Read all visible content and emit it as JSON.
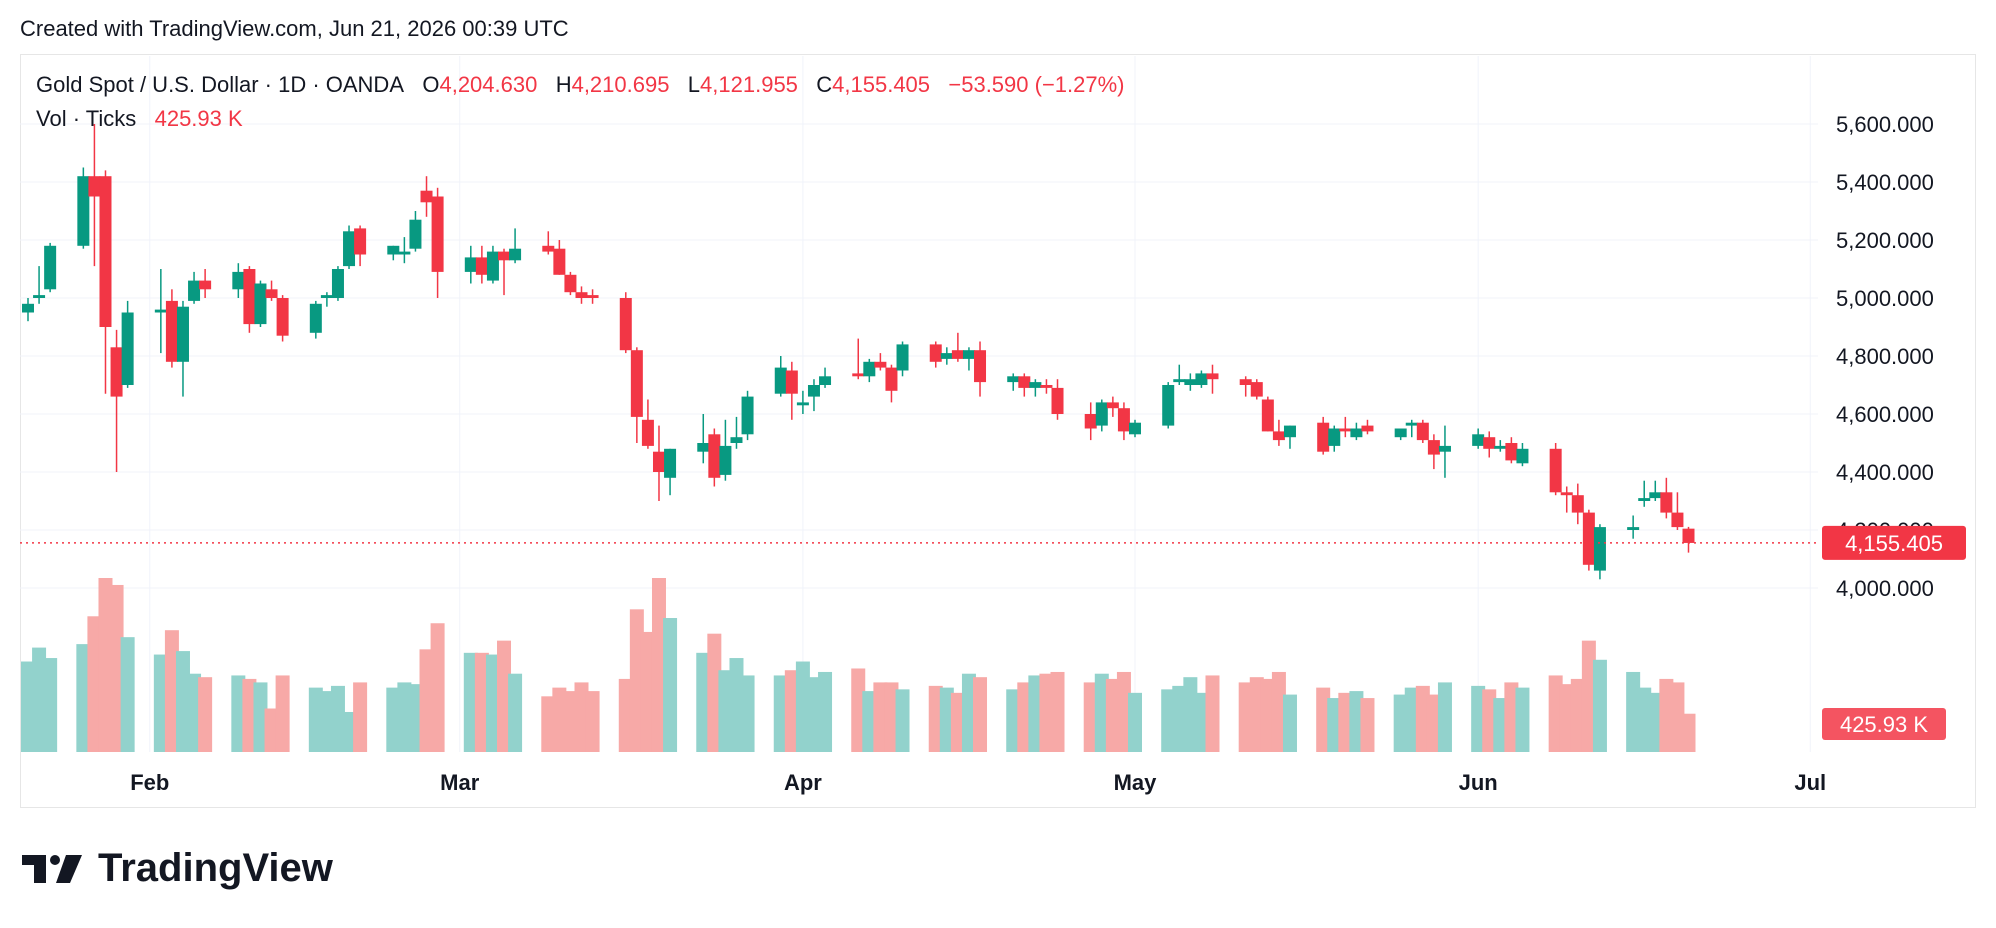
{
  "header": {
    "created_text": "Created with TradingView.com, Jun 21, 2026 00:39 UTC"
  },
  "legend": {
    "symbol": "Gold Spot / U.S. Dollar · 1D · OANDA",
    "o_label": "O",
    "o_value": "4,204.630",
    "h_label": "H",
    "h_value": "4,210.695",
    "l_label": "L",
    "l_value": "4,121.955",
    "c_label": "C",
    "c_value": "4,155.405",
    "change": "−53.590 (−1.27%)",
    "vol_label": "Vol · Ticks",
    "vol_value": "425.93 K"
  },
  "brand": {
    "name": "TradingView"
  },
  "colors": {
    "up": "#089981",
    "down": "#f23645",
    "up_vol": "#92d2cc",
    "down_vol": "#f7a9a7",
    "grid": "#f0f3fa",
    "text": "#131722"
  },
  "chart_data": {
    "type": "candlestick",
    "y_ticks": [
      "5,600.000",
      "5,400.000",
      "5,200.000",
      "5,000.000",
      "4,800.000",
      "4,600.000",
      "4,400.000",
      "4,200.000",
      "4,000.000"
    ],
    "x_ticks": [
      "Feb",
      "Mar",
      "Apr",
      "May",
      "Jun",
      "Jul"
    ],
    "last_price_label": "4,155.405",
    "last_volume_label": "425.93 K",
    "last_price": 4155.405,
    "ylim": [
      3870,
      5770
    ],
    "grid": true,
    "candles": [
      {
        "d": "01-21",
        "o": 4950,
        "h": 5000,
        "l": 4920,
        "c": 4980,
        "v": 0.52
      },
      {
        "d": "01-22",
        "o": 5000,
        "h": 5110,
        "l": 4980,
        "c": 5010,
        "v": 0.6
      },
      {
        "d": "01-23",
        "o": 5030,
        "h": 5190,
        "l": 5020,
        "c": 5180,
        "v": 0.54
      },
      {
        "d": "01-26",
        "o": 5180,
        "h": 5450,
        "l": 5170,
        "c": 5420,
        "v": 0.62
      },
      {
        "d": "01-27",
        "o": 5420,
        "h": 5600,
        "l": 5110,
        "c": 5350,
        "v": 0.78
      },
      {
        "d": "01-28",
        "o": 5420,
        "h": 5440,
        "l": 4670,
        "c": 4900,
        "v": 1.0
      },
      {
        "d": "01-29",
        "o": 4830,
        "h": 4890,
        "l": 4400,
        "c": 4660,
        "v": 0.96
      },
      {
        "d": "01-30",
        "o": 4700,
        "h": 4990,
        "l": 4690,
        "c": 4950,
        "v": 0.66
      },
      {
        "d": "02-02",
        "o": 4950,
        "h": 5100,
        "l": 4810,
        "c": 4960,
        "v": 0.56
      },
      {
        "d": "02-03",
        "o": 4990,
        "h": 5030,
        "l": 4760,
        "c": 4780,
        "v": 0.7
      },
      {
        "d": "02-04",
        "o": 4780,
        "h": 4990,
        "l": 4660,
        "c": 4970,
        "v": 0.58
      },
      {
        "d": "02-05",
        "o": 4990,
        "h": 5090,
        "l": 4980,
        "c": 5060,
        "v": 0.45
      },
      {
        "d": "02-06",
        "o": 5060,
        "h": 5100,
        "l": 5000,
        "c": 5030,
        "v": 0.43
      },
      {
        "d": "02-09",
        "o": 5030,
        "h": 5120,
        "l": 5000,
        "c": 5090,
        "v": 0.44
      },
      {
        "d": "02-10",
        "o": 5100,
        "h": 5110,
        "l": 4880,
        "c": 4910,
        "v": 0.42
      },
      {
        "d": "02-11",
        "o": 4910,
        "h": 5060,
        "l": 4900,
        "c": 5050,
        "v": 0.4
      },
      {
        "d": "02-12",
        "o": 5030,
        "h": 5060,
        "l": 4990,
        "c": 5000,
        "v": 0.25
      },
      {
        "d": "02-13",
        "o": 5000,
        "h": 5010,
        "l": 4850,
        "c": 4870,
        "v": 0.44
      },
      {
        "d": "02-16",
        "o": 4880,
        "h": 4990,
        "l": 4860,
        "c": 4980,
        "v": 0.37
      },
      {
        "d": "02-17",
        "o": 5000,
        "h": 5020,
        "l": 4970,
        "c": 5010,
        "v": 0.35
      },
      {
        "d": "02-18",
        "o": 5000,
        "h": 5110,
        "l": 4990,
        "c": 5100,
        "v": 0.38
      },
      {
        "d": "02-19",
        "o": 5110,
        "h": 5250,
        "l": 5100,
        "c": 5230,
        "v": 0.23
      },
      {
        "d": "02-20",
        "o": 5240,
        "h": 5250,
        "l": 5110,
        "c": 5150,
        "v": 0.4
      },
      {
        "d": "02-23",
        "o": 5150,
        "h": 5180,
        "l": 5130,
        "c": 5180,
        "v": 0.37
      },
      {
        "d": "02-24",
        "o": 5150,
        "h": 5210,
        "l": 5120,
        "c": 5160,
        "v": 0.4
      },
      {
        "d": "02-25",
        "o": 5170,
        "h": 5300,
        "l": 5160,
        "c": 5270,
        "v": 0.39
      },
      {
        "d": "02-26",
        "o": 5370,
        "h": 5420,
        "l": 5280,
        "c": 5330,
        "v": 0.59
      },
      {
        "d": "02-27",
        "o": 5350,
        "h": 5380,
        "l": 5000,
        "c": 5090,
        "v": 0.74
      },
      {
        "d": "03-02",
        "o": 5090,
        "h": 5180,
        "l": 5050,
        "c": 5140,
        "v": 0.57
      },
      {
        "d": "03-03",
        "o": 5140,
        "h": 5180,
        "l": 5050,
        "c": 5080,
        "v": 0.57
      },
      {
        "d": "03-04",
        "o": 5060,
        "h": 5180,
        "l": 5050,
        "c": 5160,
        "v": 0.56
      },
      {
        "d": "03-05",
        "o": 5160,
        "h": 5170,
        "l": 5010,
        "c": 5130,
        "v": 0.64
      },
      {
        "d": "03-06",
        "o": 5130,
        "h": 5240,
        "l": 5120,
        "c": 5170,
        "v": 0.45
      },
      {
        "d": "03-09",
        "o": 5180,
        "h": 5230,
        "l": 5150,
        "c": 5160,
        "v": 0.32
      },
      {
        "d": "03-10",
        "o": 5170,
        "h": 5200,
        "l": 5080,
        "c": 5080,
        "v": 0.37
      },
      {
        "d": "03-11",
        "o": 5080,
        "h": 5090,
        "l": 5010,
        "c": 5020,
        "v": 0.35
      },
      {
        "d": "03-12",
        "o": 5020,
        "h": 5040,
        "l": 4980,
        "c": 5000,
        "v": 0.4
      },
      {
        "d": "03-13",
        "o": 5010,
        "h": 5030,
        "l": 4980,
        "c": 5000,
        "v": 0.35
      },
      {
        "d": "03-16",
        "o": 5000,
        "h": 5020,
        "l": 4810,
        "c": 4820,
        "v": 0.42
      },
      {
        "d": "03-17",
        "o": 4820,
        "h": 4830,
        "l": 4500,
        "c": 4590,
        "v": 0.82
      },
      {
        "d": "03-18",
        "o": 4580,
        "h": 4650,
        "l": 4480,
        "c": 4490,
        "v": 0.69
      },
      {
        "d": "03-19",
        "o": 4470,
        "h": 4560,
        "l": 4300,
        "c": 4400,
        "v": 1.0
      },
      {
        "d": "03-20",
        "o": 4380,
        "h": 4480,
        "l": 4320,
        "c": 4480,
        "v": 0.77
      },
      {
        "d": "03-23",
        "o": 4470,
        "h": 4600,
        "l": 4430,
        "c": 4500,
        "v": 0.57
      },
      {
        "d": "03-24",
        "o": 4530,
        "h": 4550,
        "l": 4350,
        "c": 4380,
        "v": 0.68
      },
      {
        "d": "03-25",
        "o": 4390,
        "h": 4580,
        "l": 4370,
        "c": 4490,
        "v": 0.47
      },
      {
        "d": "03-26",
        "o": 4500,
        "h": 4590,
        "l": 4480,
        "c": 4520,
        "v": 0.54
      },
      {
        "d": "03-27",
        "o": 4530,
        "h": 4680,
        "l": 4510,
        "c": 4660,
        "v": 0.44
      },
      {
        "d": "03-30",
        "o": 4670,
        "h": 4800,
        "l": 4660,
        "c": 4760,
        "v": 0.44
      },
      {
        "d": "03-31",
        "o": 4750,
        "h": 4780,
        "l": 4580,
        "c": 4670,
        "v": 0.47
      },
      {
        "d": "04-01",
        "o": 4630,
        "h": 4680,
        "l": 4600,
        "c": 4640,
        "v": 0.52
      },
      {
        "d": "04-02",
        "o": 4660,
        "h": 4720,
        "l": 4610,
        "c": 4700,
        "v": 0.43
      },
      {
        "d": "04-03",
        "o": 4700,
        "h": 4760,
        "l": 4690,
        "c": 4730,
        "v": 0.46
      },
      {
        "d": "04-06",
        "o": 4740,
        "h": 4860,
        "l": 4720,
        "c": 4730,
        "v": 0.48
      },
      {
        "d": "04-07",
        "o": 4730,
        "h": 4790,
        "l": 4710,
        "c": 4780,
        "v": 0.35
      },
      {
        "d": "04-08",
        "o": 4780,
        "h": 4810,
        "l": 4750,
        "c": 4760,
        "v": 0.4
      },
      {
        "d": "04-09",
        "o": 4760,
        "h": 4770,
        "l": 4640,
        "c": 4680,
        "v": 0.4
      },
      {
        "d": "04-10",
        "o": 4750,
        "h": 4850,
        "l": 4730,
        "c": 4840,
        "v": 0.36
      },
      {
        "d": "04-13",
        "o": 4840,
        "h": 4850,
        "l": 4760,
        "c": 4780,
        "v": 0.38
      },
      {
        "d": "04-14",
        "o": 4790,
        "h": 4830,
        "l": 4770,
        "c": 4810,
        "v": 0.37
      },
      {
        "d": "04-15",
        "o": 4820,
        "h": 4880,
        "l": 4780,
        "c": 4790,
        "v": 0.34
      },
      {
        "d": "04-16",
        "o": 4790,
        "h": 4830,
        "l": 4750,
        "c": 4820,
        "v": 0.45
      },
      {
        "d": "04-17",
        "o": 4820,
        "h": 4850,
        "l": 4660,
        "c": 4710,
        "v": 0.43
      },
      {
        "d": "04-20",
        "o": 4710,
        "h": 4740,
        "l": 4680,
        "c": 4730,
        "v": 0.36
      },
      {
        "d": "04-21",
        "o": 4730,
        "h": 4740,
        "l": 4660,
        "c": 4690,
        "v": 0.4
      },
      {
        "d": "04-22",
        "o": 4690,
        "h": 4720,
        "l": 4660,
        "c": 4710,
        "v": 0.44
      },
      {
        "d": "04-23",
        "o": 4700,
        "h": 4720,
        "l": 4670,
        "c": 4690,
        "v": 0.45
      },
      {
        "d": "04-24",
        "o": 4690,
        "h": 4720,
        "l": 4580,
        "c": 4600,
        "v": 0.46
      },
      {
        "d": "04-27",
        "o": 4600,
        "h": 4640,
        "l": 4510,
        "c": 4550,
        "v": 0.4
      },
      {
        "d": "04-28",
        "o": 4560,
        "h": 4650,
        "l": 4540,
        "c": 4640,
        "v": 0.45
      },
      {
        "d": "04-29",
        "o": 4640,
        "h": 4660,
        "l": 4590,
        "c": 4620,
        "v": 0.42
      },
      {
        "d": "04-30",
        "o": 4620,
        "h": 4640,
        "l": 4510,
        "c": 4540,
        "v": 0.46
      },
      {
        "d": "05-01",
        "o": 4530,
        "h": 4580,
        "l": 4520,
        "c": 4570,
        "v": 0.34
      },
      {
        "d": "05-04",
        "o": 4560,
        "h": 4710,
        "l": 4550,
        "c": 4700,
        "v": 0.36
      },
      {
        "d": "05-05",
        "o": 4710,
        "h": 4770,
        "l": 4700,
        "c": 4720,
        "v": 0.38
      },
      {
        "d": "05-06",
        "o": 4700,
        "h": 4740,
        "l": 4680,
        "c": 4720,
        "v": 0.43
      },
      {
        "d": "05-07",
        "o": 4700,
        "h": 4750,
        "l": 4690,
        "c": 4740,
        "v": 0.34
      },
      {
        "d": "05-08",
        "o": 4740,
        "h": 4770,
        "l": 4670,
        "c": 4720,
        "v": 0.44
      },
      {
        "d": "05-11",
        "o": 4720,
        "h": 4730,
        "l": 4660,
        "c": 4700,
        "v": 0.4
      },
      {
        "d": "05-12",
        "o": 4710,
        "h": 4720,
        "l": 4650,
        "c": 4660,
        "v": 0.43
      },
      {
        "d": "05-13",
        "o": 4650,
        "h": 4660,
        "l": 4540,
        "c": 4540,
        "v": 0.42
      },
      {
        "d": "05-14",
        "o": 4540,
        "h": 4580,
        "l": 4490,
        "c": 4510,
        "v": 0.46
      },
      {
        "d": "05-15",
        "o": 4520,
        "h": 4560,
        "l": 4480,
        "c": 4560,
        "v": 0.33
      },
      {
        "d": "05-18",
        "o": 4570,
        "h": 4590,
        "l": 4460,
        "c": 4470,
        "v": 0.37
      },
      {
        "d": "05-19",
        "o": 4490,
        "h": 4560,
        "l": 4470,
        "c": 4550,
        "v": 0.31
      },
      {
        "d": "05-20",
        "o": 4550,
        "h": 4590,
        "l": 4520,
        "c": 4540,
        "v": 0.34
      },
      {
        "d": "05-21",
        "o": 4520,
        "h": 4570,
        "l": 4510,
        "c": 4550,
        "v": 0.35
      },
      {
        "d": "05-22",
        "o": 4560,
        "h": 4580,
        "l": 4530,
        "c": 4540,
        "v": 0.31
      },
      {
        "d": "05-25",
        "o": 4520,
        "h": 4550,
        "l": 4510,
        "c": 4550,
        "v": 0.33
      },
      {
        "d": "05-26",
        "o": 4560,
        "h": 4580,
        "l": 4520,
        "c": 4570,
        "v": 0.37
      },
      {
        "d": "05-27",
        "o": 4570,
        "h": 4580,
        "l": 4500,
        "c": 4510,
        "v": 0.38
      },
      {
        "d": "05-28",
        "o": 4510,
        "h": 4530,
        "l": 4410,
        "c": 4460,
        "v": 0.33
      },
      {
        "d": "05-29",
        "o": 4470,
        "h": 4560,
        "l": 4380,
        "c": 4490,
        "v": 0.4
      },
      {
        "d": "06-01",
        "o": 4490,
        "h": 4550,
        "l": 4480,
        "c": 4530,
        "v": 0.38
      },
      {
        "d": "06-02",
        "o": 4520,
        "h": 4540,
        "l": 4450,
        "c": 4480,
        "v": 0.36
      },
      {
        "d": "06-03",
        "o": 4480,
        "h": 4510,
        "l": 4470,
        "c": 4490,
        "v": 0.31
      },
      {
        "d": "06-04",
        "o": 4500,
        "h": 4520,
        "l": 4430,
        "c": 4440,
        "v": 0.4
      },
      {
        "d": "06-05",
        "o": 4430,
        "h": 4500,
        "l": 4420,
        "c": 4480,
        "v": 0.37
      },
      {
        "d": "06-08",
        "o": 4480,
        "h": 4500,
        "l": 4320,
        "c": 4330,
        "v": 0.44
      },
      {
        "d": "06-09",
        "o": 4330,
        "h": 4350,
        "l": 4260,
        "c": 4320,
        "v": 0.39
      },
      {
        "d": "06-10",
        "o": 4320,
        "h": 4360,
        "l": 4220,
        "c": 4260,
        "v": 0.42
      },
      {
        "d": "06-11",
        "o": 4260,
        "h": 4270,
        "l": 4060,
        "c": 4080,
        "v": 0.64
      },
      {
        "d": "06-12",
        "o": 4060,
        "h": 4220,
        "l": 4030,
        "c": 4210,
        "v": 0.53
      },
      {
        "d": "06-15",
        "o": 4200,
        "h": 4250,
        "l": 4170,
        "c": 4210,
        "v": 0.46
      },
      {
        "d": "06-16",
        "o": 4300,
        "h": 4370,
        "l": 4280,
        "c": 4310,
        "v": 0.37
      },
      {
        "d": "06-17",
        "o": 4310,
        "h": 4370,
        "l": 4300,
        "c": 4330,
        "v": 0.34
      },
      {
        "d": "06-18",
        "o": 4330,
        "h": 4380,
        "l": 4240,
        "c": 4260,
        "v": 0.42
      },
      {
        "d": "06-19",
        "o": 4260,
        "h": 4330,
        "l": 4200,
        "c": 4210,
        "v": 0.4
      },
      {
        "d": "06-20",
        "o": 4204.63,
        "h": 4210.695,
        "l": 4121.955,
        "c": 4155.405,
        "v": 0.22
      }
    ]
  }
}
